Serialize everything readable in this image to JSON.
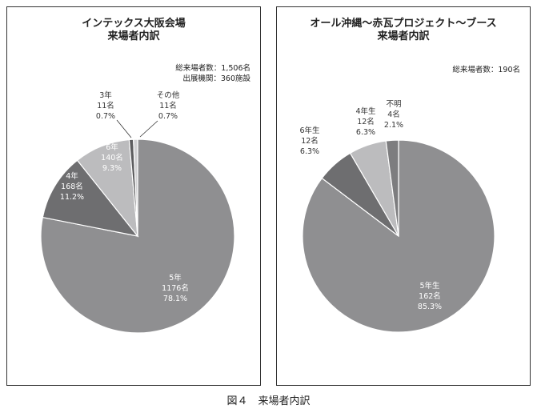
{
  "caption": "図４　来場者内訳",
  "chart_data": [
    {
      "type": "pie",
      "title_line1": "インテックス大阪会場",
      "title_line2": "来場者内訳",
      "stats": [
        "総来場者数：1,506名",
        "出展機関：360施設"
      ],
      "slices": [
        {
          "label": "5年",
          "count": "1176名",
          "percent": "78.1%",
          "value": 78.1,
          "color": "#8f8f91"
        },
        {
          "label": "4年",
          "count": "168名",
          "percent": "11.2%",
          "value": 11.2,
          "color": "#6e6e70"
        },
        {
          "label": "6年",
          "count": "140名",
          "percent": "9.3%",
          "value": 9.3,
          "color": "#bcbcbe"
        },
        {
          "label": "3年",
          "count": "11名",
          "percent": "0.7%",
          "value": 0.7,
          "color": "#5d5d5f"
        },
        {
          "label": "その他",
          "count": "11名",
          "percent": "0.7%",
          "value": 0.7,
          "color": "#d0d0d2"
        }
      ]
    },
    {
      "type": "pie",
      "title_line1": "オール沖縄～赤瓦プロジェクト～ブース",
      "title_line2": "来場者内訳",
      "stats": [
        "総来場者数：190名"
      ],
      "slices": [
        {
          "label": "5年生",
          "count": "162名",
          "percent": "85.3%",
          "value": 85.3,
          "color": "#8f8f91"
        },
        {
          "label": "6年生",
          "count": "12名",
          "percent": "6.3%",
          "value": 6.3,
          "color": "#6e6e70"
        },
        {
          "label": "4年生",
          "count": "12名",
          "percent": "6.3%",
          "value": 6.3,
          "color": "#bcbcbe"
        },
        {
          "label": "不明",
          "count": "4名",
          "percent": "2.1%",
          "value": 2.1,
          "color": "#7d7d7f"
        }
      ]
    }
  ]
}
